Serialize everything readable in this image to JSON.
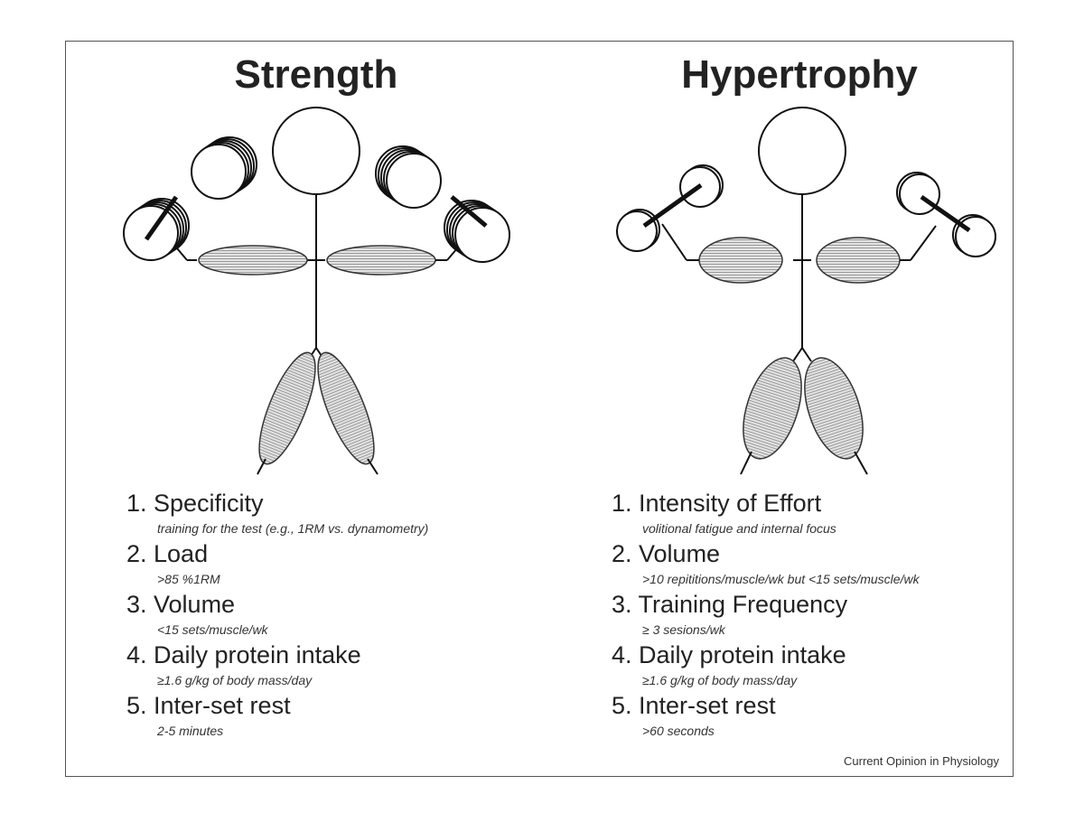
{
  "panels": [
    {
      "title": "Strength",
      "items": [
        {
          "label": "1. Specificity",
          "detail": "training for the test (e.g., 1RM vs. dynamometry)"
        },
        {
          "label": "2. Load",
          "detail": ">85 %1RM"
        },
        {
          "label": "3. Volume",
          "detail": "<15 sets/muscle/wk"
        },
        {
          "label": "4. Daily protein intake",
          "detail": "≥1.6 g/kg of body mass/day"
        },
        {
          "label": "5. Inter-set rest",
          "detail": "2-5 minutes"
        }
      ]
    },
    {
      "title": "Hypertrophy",
      "items": [
        {
          "label": "1. Intensity of Effort",
          "detail": "volitional fatigue and internal focus"
        },
        {
          "label": "2. Volume",
          "detail": ">10 repititions/muscle/wk but <15 sets/muscle/wk"
        },
        {
          "label": "3. Training Frequency",
          "detail": "≥ 3 sesions/wk"
        },
        {
          "label": "4. Daily protein intake",
          "detail": "≥1.6 g/kg of body mass/day"
        },
        {
          "label": "5. Inter-set rest",
          "detail": ">60 seconds"
        }
      ]
    }
  ],
  "credit": "Current Opinion in Physiology"
}
